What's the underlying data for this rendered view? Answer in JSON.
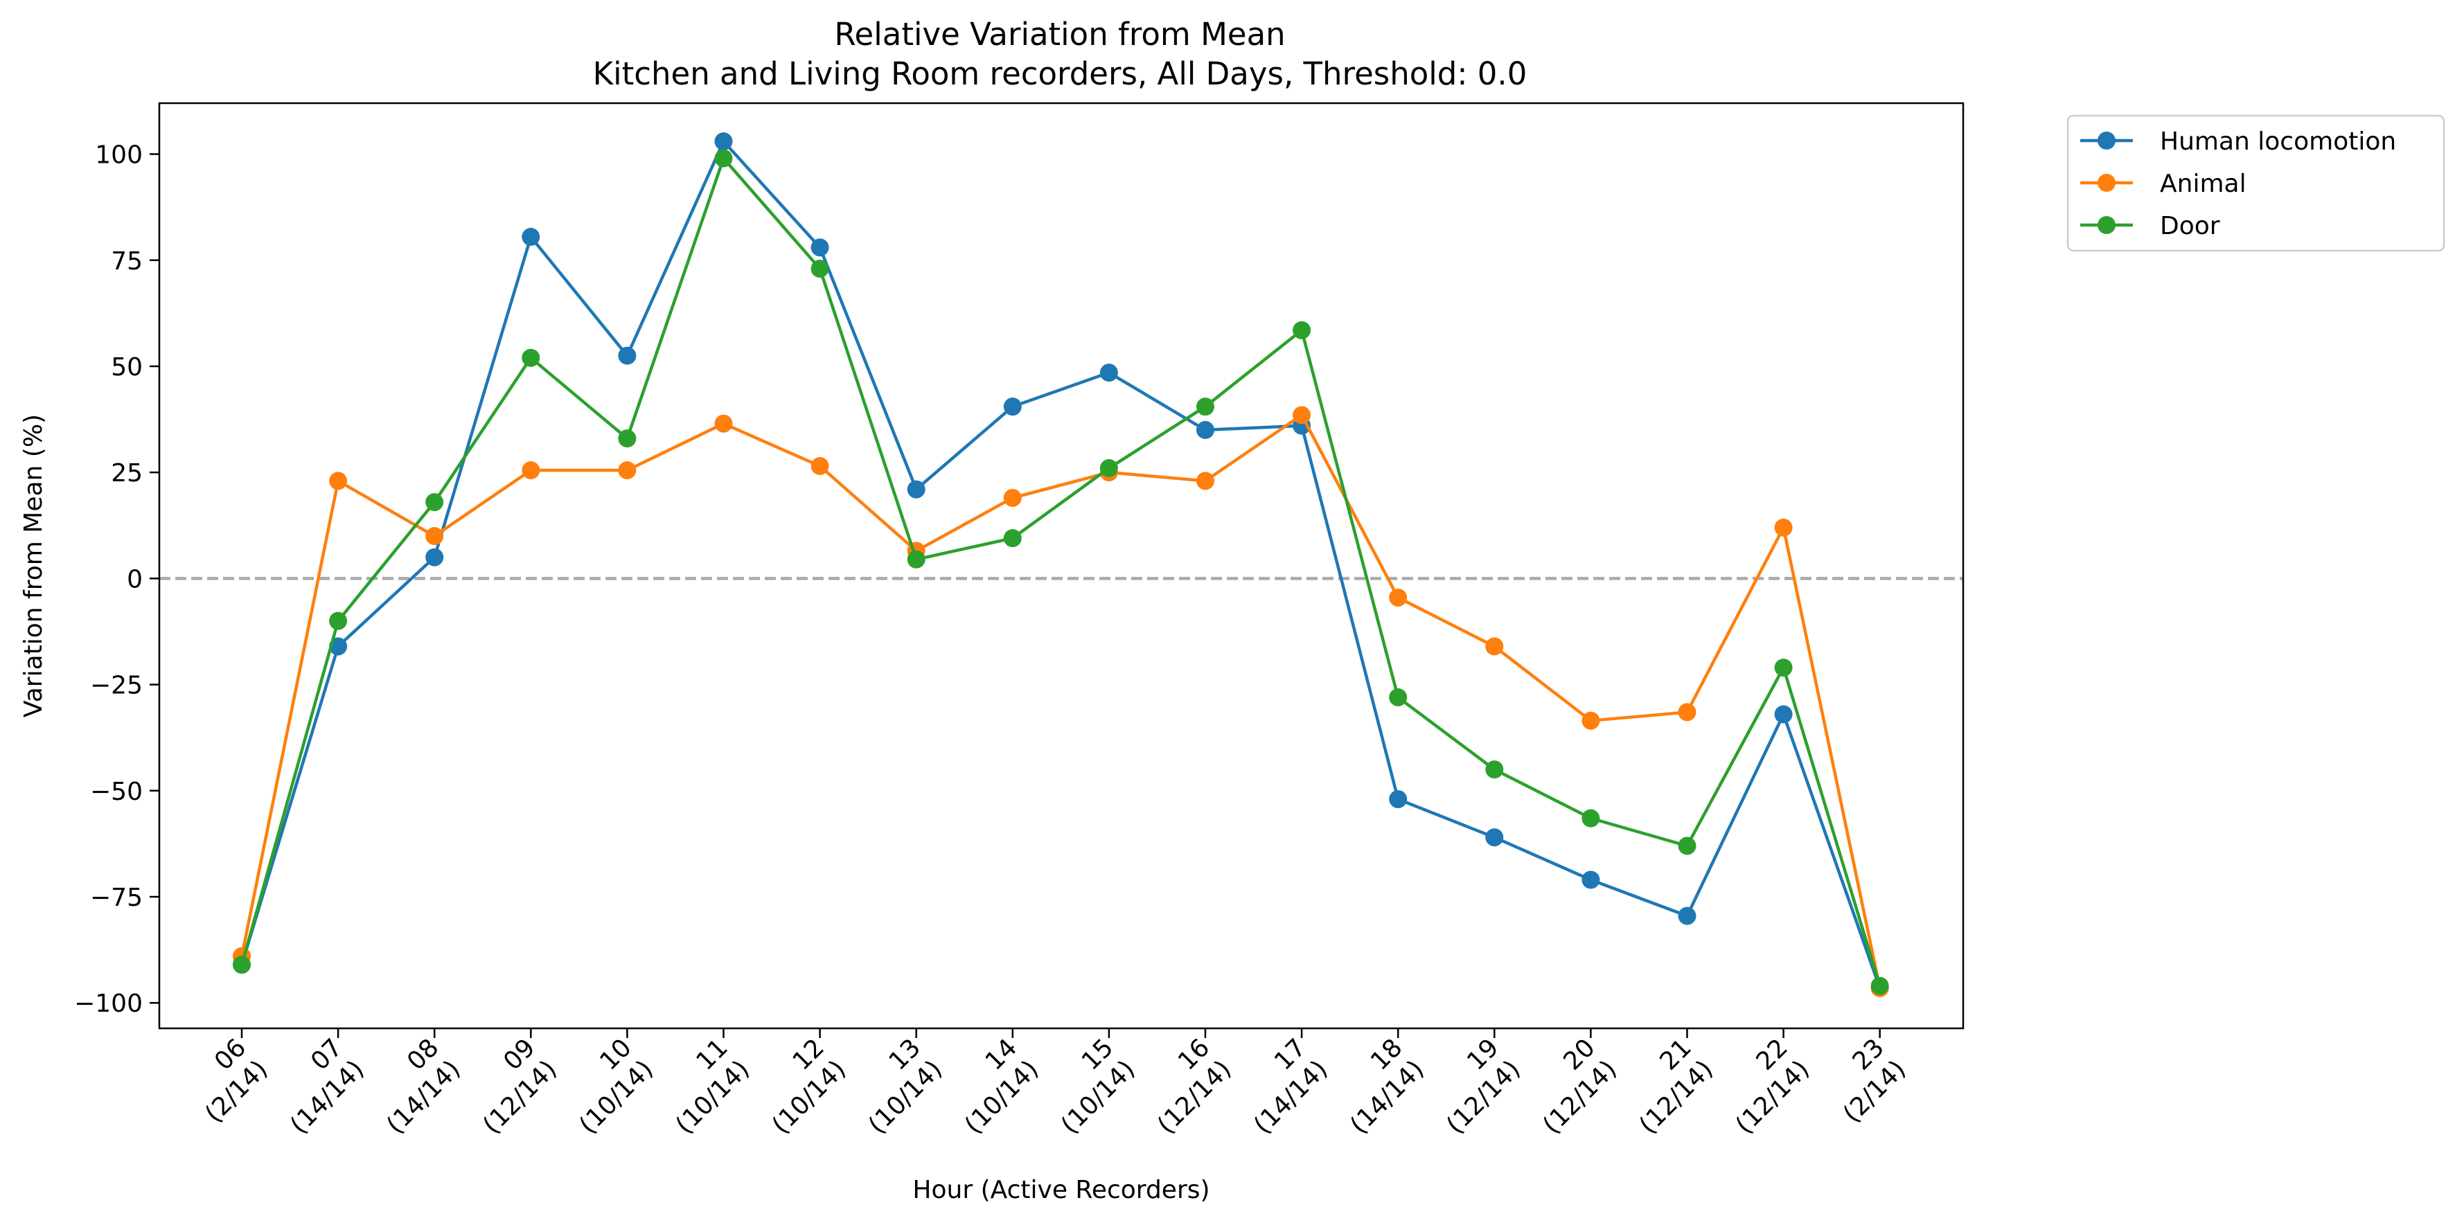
{
  "chart_data": {
    "type": "line",
    "title": "Relative Variation from Mean",
    "subtitle": "Kitchen and Living Room recorders, All Days, Threshold: 0.0",
    "xlabel": "Hour (Active Recorders)",
    "ylabel": "Variation from Mean (%)",
    "ylim": [
      -106,
      112
    ],
    "yticks": [
      -100,
      -75,
      -50,
      -25,
      0,
      25,
      50,
      75,
      100
    ],
    "grid": false,
    "legend_position": "outside-top-right",
    "reference_line": {
      "y": 0,
      "style": "dashed",
      "color": "#aaaaaa"
    },
    "categories": [
      {
        "hour": "06",
        "recorders": "(2/14)"
      },
      {
        "hour": "07",
        "recorders": "(14/14)"
      },
      {
        "hour": "08",
        "recorders": "(14/14)"
      },
      {
        "hour": "09",
        "recorders": "(12/14)"
      },
      {
        "hour": "10",
        "recorders": "(10/14)"
      },
      {
        "hour": "11",
        "recorders": "(10/14)"
      },
      {
        "hour": "12",
        "recorders": "(10/14)"
      },
      {
        "hour": "13",
        "recorders": "(10/14)"
      },
      {
        "hour": "14",
        "recorders": "(10/14)"
      },
      {
        "hour": "15",
        "recorders": "(10/14)"
      },
      {
        "hour": "16",
        "recorders": "(12/14)"
      },
      {
        "hour": "17",
        "recorders": "(14/14)"
      },
      {
        "hour": "18",
        "recorders": "(14/14)"
      },
      {
        "hour": "19",
        "recorders": "(12/14)"
      },
      {
        "hour": "20",
        "recorders": "(12/14)"
      },
      {
        "hour": "21",
        "recorders": "(12/14)"
      },
      {
        "hour": "22",
        "recorders": "(12/14)"
      },
      {
        "hour": "23",
        "recorders": "(2/14)"
      }
    ],
    "series": [
      {
        "name": "Human locomotion",
        "color": "#1f77b4",
        "values": [
          -91,
          -16,
          5,
          80.5,
          52.5,
          103,
          78,
          21,
          40.5,
          48.5,
          35,
          36,
          -52,
          -61,
          -71,
          -79.5,
          -32,
          -96.5
        ]
      },
      {
        "name": "Animal",
        "color": "#ff7f0e",
        "values": [
          -89,
          23,
          10,
          25.5,
          25.5,
          36.5,
          26.5,
          6.5,
          19,
          25,
          23,
          38.5,
          -4.5,
          -16,
          -33.5,
          -31.5,
          12,
          -96.5
        ]
      },
      {
        "name": "Door",
        "color": "#2ca02c",
        "values": [
          -91,
          -10,
          18,
          52,
          33,
          99,
          73,
          4.5,
          9.5,
          26,
          40.5,
          58.5,
          -28,
          -45,
          -56.5,
          -63,
          -21,
          -96
        ]
      }
    ]
  }
}
